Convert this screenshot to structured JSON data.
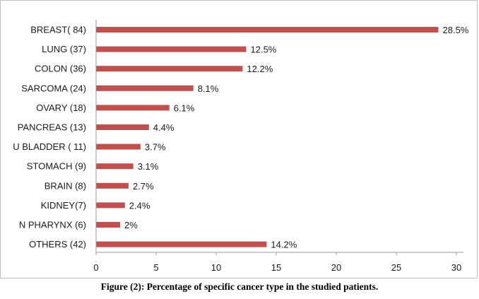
{
  "caption": "Figure (2): Percentage of specific cancer type in the studied patients.",
  "chart_data": {
    "type": "bar",
    "orientation": "horizontal",
    "title": "",
    "xlabel": "",
    "ylabel": "",
    "xlim": [
      0,
      30
    ],
    "ticks": [
      0,
      5,
      10,
      15,
      20,
      25,
      30
    ],
    "categories": [
      "BREAST( 84)",
      "LUNG (37)",
      "COLON (36)",
      "SARCOMA (24)",
      "OVARY (18)",
      "PANCREAS (13)",
      "U BLADDER ( 11)",
      "STOMACH (9)",
      "BRAIN (8)",
      "KIDNEY(7)",
      "N PHARYNX (6)",
      "OTHERS (42)"
    ],
    "values": [
      28.5,
      12.5,
      12.2,
      8.1,
      6.1,
      4.4,
      3.7,
      3.1,
      2.7,
      2.4,
      2,
      14.2
    ],
    "value_labels": [
      "28.5%",
      "12.5%",
      "12.2%",
      "8.1%",
      "6.1%",
      "4.4%",
      "3.7%",
      "3.1%",
      "2.7%",
      "2.4%",
      "2%",
      "14.2%"
    ],
    "bar_color": "#c0504d",
    "grid": false,
    "legend": false
  }
}
